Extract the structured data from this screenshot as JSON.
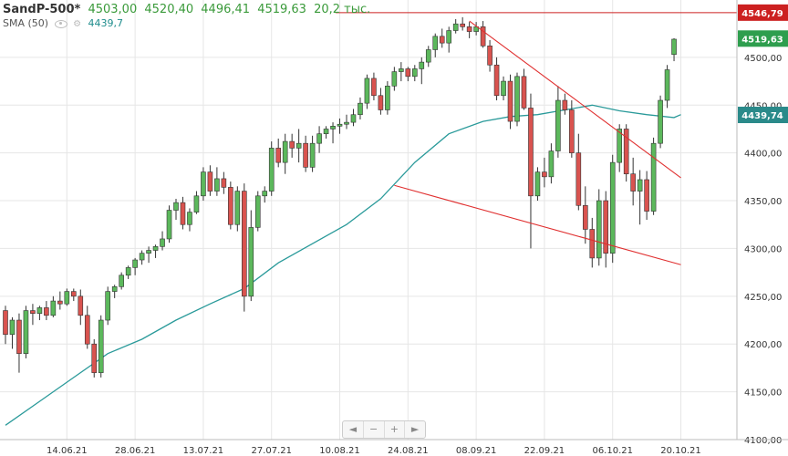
{
  "header": {
    "symbol": "SandP-500*",
    "open": "4503,00",
    "high": "4520,40",
    "low": "4496,41",
    "close": "4519,63",
    "volume": "20,2 тыс.",
    "indicator_name": "SMA (50)",
    "indicator_value": "4439,7"
  },
  "nav": {
    "prev": "◄",
    "minus": "−",
    "plus": "+",
    "next": "►"
  },
  "colors": {
    "up": "#5cb85c",
    "down": "#d9534f",
    "sma": "#2a9a9a",
    "trend": "#e03030",
    "price_badge": "#2e9e4e",
    "sma_badge": "#2a8a8a",
    "level_badge": "#cc2020"
  },
  "chart_data": {
    "type": "candlestick",
    "ylim": [
      4100,
      4560
    ],
    "yticks": [
      4100,
      4150,
      4200,
      4250,
      4300,
      4350,
      4400,
      4450,
      4500
    ],
    "ytick_labels": [
      "4100,00",
      "4150,00",
      "4200,00",
      "4250,00",
      "4300,00",
      "4350,00",
      "4400,00",
      "4450,00",
      "4500,00"
    ],
    "xtick_labels": [
      "14.06.21",
      "28.06.21",
      "13.07.21",
      "27.07.21",
      "10.08.21",
      "24.08.21",
      "08.09.21",
      "22.09.21",
      "06.10.21",
      "20.10.21"
    ],
    "xtick_index": [
      9,
      19,
      29,
      39,
      49,
      59,
      69,
      79,
      89,
      99
    ],
    "price_badge": "4519,63",
    "sma_badge": "4439,74",
    "level": {
      "value": 4546.79,
      "label": "4546,79"
    },
    "candles": [
      [
        4235,
        4240,
        4200,
        4210
      ],
      [
        4210,
        4228,
        4195,
        4225
      ],
      [
        4225,
        4232,
        4170,
        4190
      ],
      [
        4190,
        4240,
        4185,
        4235
      ],
      [
        4235,
        4242,
        4220,
        4232
      ],
      [
        4232,
        4240,
        4225,
        4238
      ],
      [
        4238,
        4245,
        4225,
        4230
      ],
      [
        4230,
        4250,
        4228,
        4245
      ],
      [
        4245,
        4255,
        4236,
        4242
      ],
      [
        4242,
        4258,
        4240,
        4255
      ],
      [
        4255,
        4258,
        4245,
        4250
      ],
      [
        4250,
        4257,
        4220,
        4230
      ],
      [
        4230,
        4240,
        4195,
        4200
      ],
      [
        4200,
        4205,
        4165,
        4170
      ],
      [
        4170,
        4230,
        4165,
        4225
      ],
      [
        4225,
        4260,
        4220,
        4255
      ],
      [
        4255,
        4262,
        4248,
        4260
      ],
      [
        4260,
        4275,
        4257,
        4272
      ],
      [
        4272,
        4282,
        4268,
        4280
      ],
      [
        4280,
        4290,
        4272,
        4288
      ],
      [
        4288,
        4298,
        4283,
        4295
      ],
      [
        4295,
        4302,
        4285,
        4298
      ],
      [
        4298,
        4304,
        4290,
        4302
      ],
      [
        4302,
        4318,
        4298,
        4310
      ],
      [
        4310,
        4345,
        4306,
        4340
      ],
      [
        4340,
        4352,
        4330,
        4348
      ],
      [
        4348,
        4354,
        4320,
        4325
      ],
      [
        4325,
        4342,
        4318,
        4338
      ],
      [
        4338,
        4360,
        4336,
        4355
      ],
      [
        4355,
        4385,
        4350,
        4380
      ],
      [
        4380,
        4387,
        4355,
        4360
      ],
      [
        4360,
        4385,
        4355,
        4373
      ],
      [
        4373,
        4380,
        4357,
        4364
      ],
      [
        4364,
        4370,
        4320,
        4325
      ],
      [
        4325,
        4365,
        4318,
        4360
      ],
      [
        4360,
        4368,
        4234,
        4250
      ],
      [
        4250,
        4340,
        4245,
        4322
      ],
      [
        4322,
        4360,
        4318,
        4355
      ],
      [
        4355,
        4365,
        4348,
        4360
      ],
      [
        4360,
        4412,
        4355,
        4405
      ],
      [
        4405,
        4415,
        4385,
        4390
      ],
      [
        4390,
        4420,
        4378,
        4412
      ],
      [
        4412,
        4420,
        4395,
        4405
      ],
      [
        4405,
        4425,
        4390,
        4410
      ],
      [
        4410,
        4418,
        4380,
        4385
      ],
      [
        4385,
        4418,
        4380,
        4410
      ],
      [
        4410,
        4428,
        4400,
        4420
      ],
      [
        4420,
        4428,
        4415,
        4425
      ],
      [
        4425,
        4432,
        4410,
        4428
      ],
      [
        4428,
        4436,
        4420,
        4430
      ],
      [
        4430,
        4440,
        4425,
        4432
      ],
      [
        4432,
        4446,
        4428,
        4440
      ],
      [
        4440,
        4458,
        4435,
        4452
      ],
      [
        4452,
        4482,
        4446,
        4478
      ],
      [
        4478,
        4484,
        4455,
        4460
      ],
      [
        4460,
        4468,
        4440,
        4445
      ],
      [
        4445,
        4475,
        4440,
        4470
      ],
      [
        4470,
        4490,
        4465,
        4485
      ],
      [
        4485,
        4495,
        4475,
        4488
      ],
      [
        4488,
        4490,
        4475,
        4480
      ],
      [
        4480,
        4492,
        4475,
        4488
      ],
      [
        4488,
        4500,
        4472,
        4495
      ],
      [
        4495,
        4512,
        4490,
        4508
      ],
      [
        4508,
        4525,
        4500,
        4522
      ],
      [
        4522,
        4530,
        4510,
        4515
      ],
      [
        4515,
        4532,
        4505,
        4528
      ],
      [
        4528,
        4540,
        4525,
        4535
      ],
      [
        4535,
        4542,
        4528,
        4532
      ],
      [
        4532,
        4537,
        4520,
        4527
      ],
      [
        4527,
        4537,
        4523,
        4532
      ],
      [
        4532,
        4538,
        4510,
        4512
      ],
      [
        4512,
        4518,
        4485,
        4492
      ],
      [
        4492,
        4500,
        4455,
        4460
      ],
      [
        4460,
        4480,
        4455,
        4475
      ],
      [
        4475,
        4482,
        4425,
        4433
      ],
      [
        4433,
        4484,
        4428,
        4480
      ],
      [
        4480,
        4488,
        4445,
        4447
      ],
      [
        4447,
        4462,
        4300,
        4355
      ],
      [
        4355,
        4385,
        4350,
        4380
      ],
      [
        4380,
        4395,
        4364,
        4375
      ],
      [
        4375,
        4410,
        4368,
        4402
      ],
      [
        4402,
        4470,
        4395,
        4455
      ],
      [
        4455,
        4462,
        4440,
        4445
      ],
      [
        4445,
        4455,
        4395,
        4400
      ],
      [
        4400,
        4420,
        4340,
        4345
      ],
      [
        4345,
        4365,
        4305,
        4320
      ],
      [
        4320,
        4332,
        4280,
        4290
      ],
      [
        4290,
        4362,
        4282,
        4350
      ],
      [
        4350,
        4360,
        4280,
        4295
      ],
      [
        4295,
        4398,
        4285,
        4390
      ],
      [
        4390,
        4430,
        4380,
        4425
      ],
      [
        4425,
        4430,
        4370,
        4378
      ],
      [
        4378,
        4395,
        4345,
        4360
      ],
      [
        4360,
        4382,
        4325,
        4372
      ],
      [
        4372,
        4381,
        4330,
        4339
      ],
      [
        4339,
        4416,
        4335,
        4410
      ],
      [
        4410,
        4460,
        4405,
        4455
      ],
      [
        4455,
        4492,
        4447,
        4487
      ],
      [
        4503,
        4520,
        4496,
        4519
      ]
    ],
    "sma": [
      [
        0,
        4115
      ],
      [
        5,
        4140
      ],
      [
        10,
        4165
      ],
      [
        15,
        4190
      ],
      [
        20,
        4205
      ],
      [
        25,
        4225
      ],
      [
        30,
        4242
      ],
      [
        35,
        4258
      ],
      [
        40,
        4285
      ],
      [
        45,
        4305
      ],
      [
        50,
        4325
      ],
      [
        55,
        4352
      ],
      [
        60,
        4390
      ],
      [
        65,
        4420
      ],
      [
        70,
        4433
      ],
      [
        74,
        4438
      ],
      [
        78,
        4440
      ],
      [
        82,
        4445
      ],
      [
        86,
        4450
      ],
      [
        90,
        4444
      ],
      [
        94,
        4440
      ],
      [
        98,
        4437
      ],
      [
        99,
        4440
      ]
    ],
    "trendlines": [
      {
        "x1": 68,
        "y1": 4538,
        "x2": 99,
        "y2": 4374
      },
      {
        "x1": 57,
        "y1": 4366,
        "x2": 99,
        "y2": 4283
      }
    ]
  }
}
